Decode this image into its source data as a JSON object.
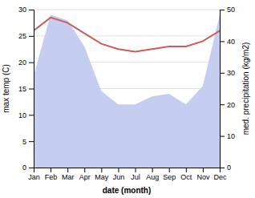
{
  "chart_data": {
    "type": "line",
    "xlabel": "date (month)",
    "ylabel": "max temp (C)",
    "y2label": "med. precipitation (kg/m2)",
    "categories": [
      "Jan",
      "Feb",
      "Mar",
      "Apr",
      "May",
      "Jun",
      "Jul",
      "Aug",
      "Sep",
      "Oct",
      "Nov",
      "Dec"
    ],
    "series": [
      {
        "type": "area",
        "color": "#c5cdf0",
        "values": [
          17.5,
          29.0,
          28.0,
          23.0,
          14.5,
          12.0,
          12.0,
          13.5,
          14.0,
          12.0,
          15.5,
          29.0
        ]
      },
      {
        "type": "line",
        "color": "#cd5c5c",
        "values": [
          26.0,
          28.5,
          27.5,
          25.5,
          23.5,
          22.5,
          22.0,
          22.5,
          23.0,
          23.0,
          24.0,
          26.0
        ]
      }
    ],
    "ylim": [
      0,
      30
    ],
    "yticks": [
      0,
      5,
      10,
      15,
      20,
      25,
      30
    ],
    "y2lim": [
      0,
      50
    ],
    "y2ticks": [
      0,
      10,
      20,
      30,
      40,
      50
    ],
    "grid": true
  }
}
